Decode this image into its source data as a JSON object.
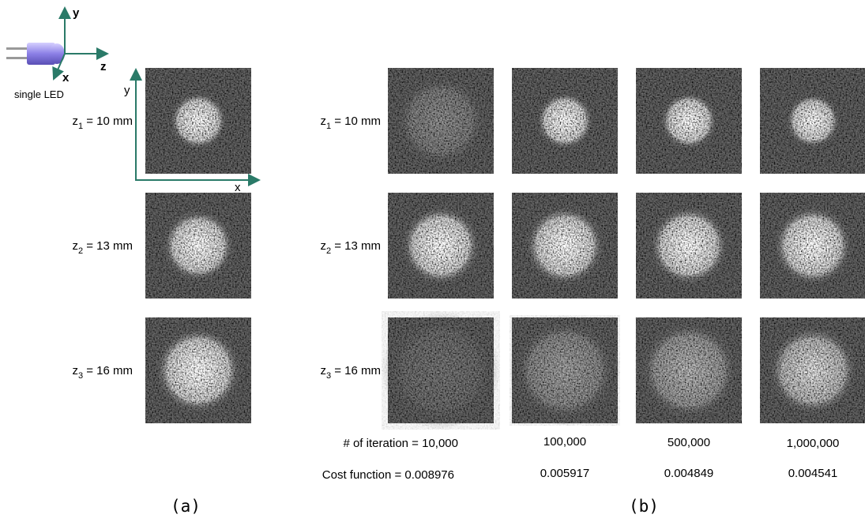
{
  "axis_icon": {
    "y": "y",
    "z": "z",
    "x": "x",
    "caption": "single LED"
  },
  "panel_a": {
    "axes": {
      "y": "y",
      "x": "x"
    },
    "rows": [
      {
        "var": "z",
        "sub": "1",
        "eq": " = 10 mm"
      },
      {
        "var": "z",
        "sub": "2",
        "eq": " = 13 mm"
      },
      {
        "var": "z",
        "sub": "3",
        "eq": " = 16 mm"
      }
    ],
    "caption": "(a)"
  },
  "panel_b": {
    "rows": [
      {
        "var": "z",
        "sub": "1",
        "eq": " = 10 mm"
      },
      {
        "var": "z",
        "sub": "2",
        "eq": " = 13 mm"
      },
      {
        "var": "z",
        "sub": "3",
        "eq": " = 16 mm"
      }
    ],
    "iteration_label": "# of iteration = ",
    "iterations": [
      "10,000",
      "100,000",
      "500,000",
      "1,000,000"
    ],
    "cost_label": "Cost function = ",
    "costs": [
      "0.008976",
      "0.005917",
      "0.004849",
      "0.004541"
    ],
    "caption": "(b)"
  }
}
